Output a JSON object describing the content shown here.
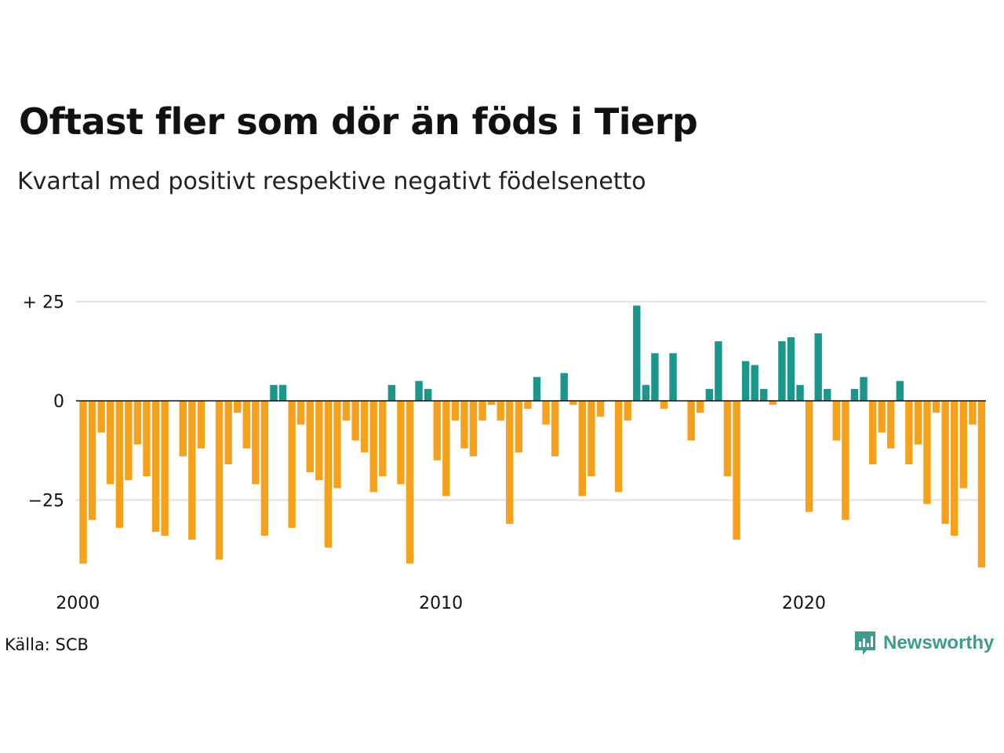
{
  "title": "Oftast fler som dör än föds i Tierp",
  "subtitle": "Kvartal med positivt respektive negativt födelsenetto",
  "source": "Källa: SCB",
  "brand": "Newsworthy",
  "colors": {
    "positive": "#1a968c",
    "negative": "#f6a11b",
    "grid": "#e0e0e0",
    "zero": "#111111",
    "brand": "#3e9b8d"
  },
  "chart_data": {
    "type": "bar",
    "title": "Oftast fler som dör än föds i Tierp",
    "subtitle": "Kvartal med positivt respektive negativt födelsenetto",
    "xlabel": "",
    "ylabel": "",
    "ylim": [
      -43,
      26
    ],
    "y_ticks": [
      {
        "value": 25,
        "label": "+ 25"
      },
      {
        "value": 0,
        "label": "0"
      },
      {
        "value": -25,
        "label": "−25"
      }
    ],
    "x_ticks": [
      {
        "value": 2000,
        "label": "2000"
      },
      {
        "value": 2010,
        "label": "2010"
      },
      {
        "value": 2020,
        "label": "2020"
      }
    ],
    "x_start": 2000,
    "grid": true,
    "legend": "none",
    "categories": [
      "2000 K1",
      "2000 K2",
      "2000 K3",
      "2000 K4",
      "2001 K1",
      "2001 K2",
      "2001 K3",
      "2001 K4",
      "2002 K1",
      "2002 K2",
      "2002 K3",
      "2002 K4",
      "2003 K1",
      "2003 K2",
      "2003 K3",
      "2003 K4",
      "2004 K1",
      "2004 K2",
      "2004 K3",
      "2004 K4",
      "2005 K1",
      "2005 K2",
      "2005 K3",
      "2005 K4",
      "2006 K1",
      "2006 K2",
      "2006 K3",
      "2006 K4",
      "2007 K1",
      "2007 K2",
      "2007 K3",
      "2007 K4",
      "2008 K1",
      "2008 K2",
      "2008 K3",
      "2008 K4",
      "2009 K1",
      "2009 K2",
      "2009 K3",
      "2009 K4",
      "2010 K1",
      "2010 K2",
      "2010 K3",
      "2010 K4",
      "2011 K1",
      "2011 K2",
      "2011 K3",
      "2011 K4",
      "2012 K1",
      "2012 K2",
      "2012 K3",
      "2012 K4",
      "2013 K1",
      "2013 K2",
      "2013 K3",
      "2013 K4",
      "2014 K1",
      "2014 K2",
      "2014 K3",
      "2014 K4",
      "2015 K1",
      "2015 K2",
      "2015 K3",
      "2015 K4",
      "2016 K1",
      "2016 K2",
      "2016 K3",
      "2016 K4",
      "2017 K1",
      "2017 K2",
      "2017 K3",
      "2017 K4",
      "2018 K1",
      "2018 K2",
      "2018 K3",
      "2018 K4",
      "2019 K1",
      "2019 K2",
      "2019 K3",
      "2019 K4",
      "2020 K1",
      "2020 K2",
      "2020 K3",
      "2020 K4",
      "2021 K1",
      "2021 K2",
      "2021 K3",
      "2021 K4",
      "2022 K1",
      "2022 K2",
      "2022 K3",
      "2022 K4",
      "2023 K1",
      "2023 K2",
      "2023 K3",
      "2023 K4",
      "2024 K1",
      "2024 K2",
      "2024 K3",
      "2024 K4"
    ],
    "values": [
      -41,
      -30,
      -8,
      -21,
      -32,
      -20,
      -11,
      -19,
      -33,
      -34,
      0,
      -14,
      -35,
      -12,
      0,
      -40,
      -16,
      -3,
      -12,
      -21,
      -34,
      4,
      4,
      -32,
      -6,
      -18,
      -20,
      -37,
      -22,
      -5,
      -10,
      -13,
      -23,
      -19,
      4,
      -21,
      -41,
      5,
      3,
      -15,
      -24,
      -5,
      -12,
      -14,
      -5,
      -1,
      -5,
      -31,
      -13,
      -2,
      6,
      -6,
      -14,
      7,
      -1,
      -24,
      -19,
      -4,
      0,
      -23,
      -5,
      24,
      4,
      12,
      -2,
      12,
      0,
      -10,
      -3,
      3,
      15,
      -19,
      -35,
      10,
      9,
      3,
      -1,
      15,
      16,
      4,
      -28,
      17,
      3,
      -10,
      -30,
      3,
      6,
      -16,
      -8,
      -12,
      5,
      -16,
      -11,
      -26,
      -3,
      -31,
      -34,
      -22,
      -6,
      -42
    ]
  }
}
